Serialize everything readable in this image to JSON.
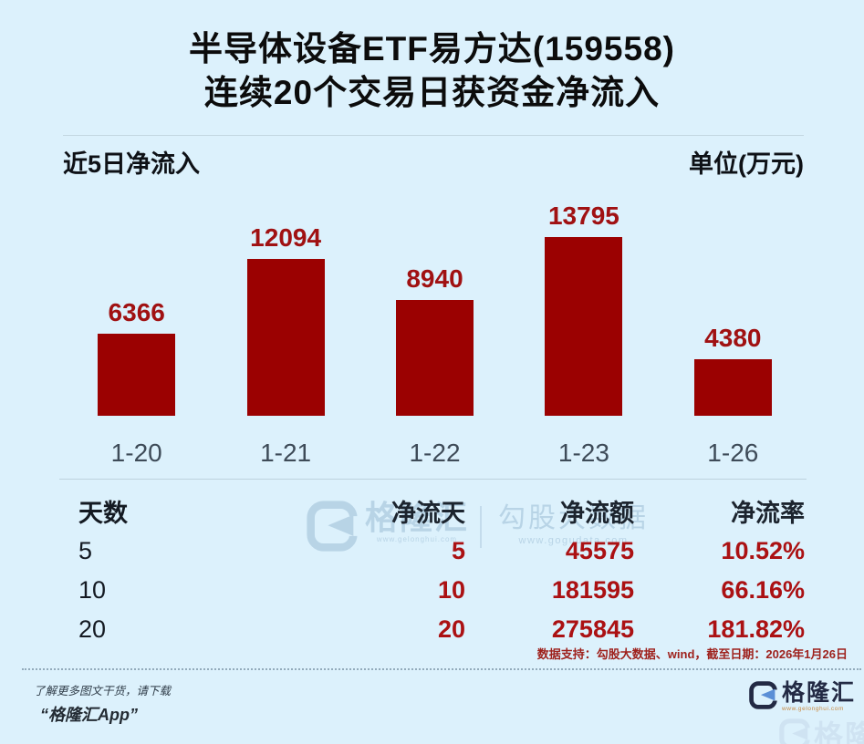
{
  "title": {
    "line1": "半导体设备ETF易方达(159558)",
    "line2": "连续20个交易日获资金净流入"
  },
  "chart_header": {
    "left": "近5日净流入",
    "right": "单位(万元)"
  },
  "chart_data": {
    "type": "bar",
    "categories": [
      "1-20",
      "1-21",
      "1-22",
      "1-23",
      "1-26"
    ],
    "values": [
      6366,
      12094,
      8940,
      13795,
      4380
    ],
    "title": "近5日净流入",
    "xlabel": "",
    "ylabel": "单位(万元)",
    "ylim": [
      0,
      14500
    ],
    "grid": false,
    "legend": "none",
    "bar_color": "#9b0101",
    "value_label_color": "#a01112",
    "tick_label_color": "#3e4b58"
  },
  "table": {
    "headers": [
      "天数",
      "净流天",
      "净流额",
      "净流率"
    ],
    "rows": [
      [
        "5",
        "5",
        "45575",
        "10.52%"
      ],
      [
        "10",
        "10",
        "181595",
        "66.16%"
      ],
      [
        "20",
        "20",
        "275845",
        "181.82%"
      ]
    ]
  },
  "watermark": {
    "brand": "格隆汇",
    "brand_url": "www.gelonghui.com",
    "partner": "勾股大数据",
    "partner_url": "www.gogudata.com"
  },
  "footer": {
    "source_note": "数据支持：勾股大数据、wind，截至日期：2026年1月26日",
    "promo_line1": "了解更多图文干货，请下载",
    "promo_line2": "“格隆汇App”",
    "brand": "格隆汇",
    "brand_url": "www.gelonghui.com"
  },
  "colors": {
    "background": "#dcf1fc",
    "bar": "#9b0101",
    "table_value_red": "#ab1113",
    "source_note_red": "#9e211c",
    "logo_navy": "#232a44",
    "watermark_blue": "#b5d1e4"
  }
}
